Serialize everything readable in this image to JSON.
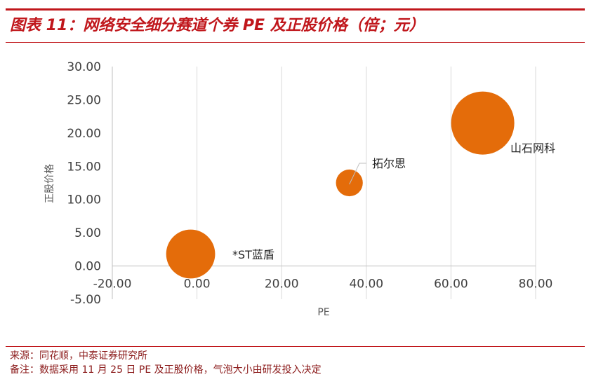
{
  "header": {
    "title": "图表 11：网络安全细分赛道个券 PE 及正股价格（倍；元）"
  },
  "footer": {
    "source": "来源：同花顺，中泰证券研究所",
    "note": "备注：数据采用 11 月 25 日 PE 及正股价格，气泡大小由研发投入决定"
  },
  "chart_data": {
    "type": "scatter",
    "subtype": "bubble",
    "title": "",
    "xlabel": "PE",
    "ylabel": "正股价格",
    "xlim": [
      -20,
      80
    ],
    "ylim": [
      -5,
      30
    ],
    "x_ticks": [
      "-20.00",
      "0.00",
      "20.00",
      "40.00",
      "60.00",
      "80.00"
    ],
    "y_ticks": [
      "-5.00",
      "0.00",
      "5.00",
      "10.00",
      "15.00",
      "20.00",
      "25.00",
      "30.00"
    ],
    "grid": "vertical",
    "bubble_color": "#e46c0a",
    "points": [
      {
        "label": "*ST蓝盾",
        "x": -1.5,
        "y": 1.8,
        "size": 0.62
      },
      {
        "label": "拓尔思",
        "x": 36,
        "y": 12.5,
        "size": 0.34
      },
      {
        "label": "山石网科",
        "x": 67.5,
        "y": 21.5,
        "size": 0.8
      }
    ]
  }
}
